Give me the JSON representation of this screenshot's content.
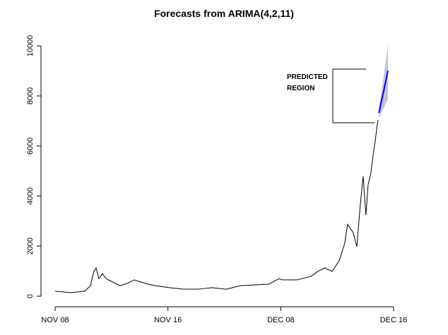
{
  "chart_data": {
    "type": "line",
    "title": "Forecasts from ARIMA(4,2,11)",
    "annotation": [
      "PREDICTED",
      "REGION"
    ],
    "xlim": [
      0,
      300
    ],
    "xticks": [
      {
        "value": 0,
        "label": "NOV 08"
      },
      {
        "value": 100,
        "label": "NOV 16"
      },
      {
        "value": 200,
        "label": "DEC 08"
      },
      {
        "value": 300,
        "label": "DEC 16"
      }
    ],
    "ylim": [
      0,
      10000
    ],
    "yticks": [
      0,
      2000,
      4000,
      6000,
      8000,
      10000
    ],
    "series": [
      {
        "color": "#000000",
        "x": [
          0,
          13.8,
          26.3,
          31.3,
          34.4,
          36.3,
          38.8,
          42,
          45.1,
          51.3,
          57.6,
          63.9,
          70.1,
          76.4,
          82.7,
          88.9,
          101.4,
          114,
          126.5,
          139,
          151.5,
          164.1,
          176.6,
          189.1,
          198.5,
          201.6,
          214.2,
          226.7,
          232.9,
          239.2,
          245.5,
          251.7,
          256.7,
          259.2,
          264.2,
          267.4,
          270.5,
          273,
          275.5,
          277.4,
          279.9,
          281.8,
          283.7,
          284.9,
          286.2
        ],
        "values": [
          200,
          140,
          200,
          420,
          990,
          1130,
          700,
          900,
          700,
          560,
          420,
          510,
          650,
          560,
          480,
          420,
          340,
          280,
          280,
          340,
          280,
          420,
          450,
          480,
          700,
          650,
          650,
          790,
          990,
          1130,
          990,
          1410,
          2110,
          2870,
          2540,
          1970,
          3660,
          4790,
          3240,
          4450,
          4930,
          5630,
          6200,
          6620,
          7040
        ]
      },
      {
        "color": "#0000ff",
        "x": [
          287,
          291,
          295
        ],
        "values": [
          7320,
          8150,
          9010
        ],
        "lower": [
          7100,
          7500,
          7890
        ],
        "upper": [
          7550,
          8700,
          10060
        ],
        "band_color": "#c4c4d6"
      }
    ]
  }
}
